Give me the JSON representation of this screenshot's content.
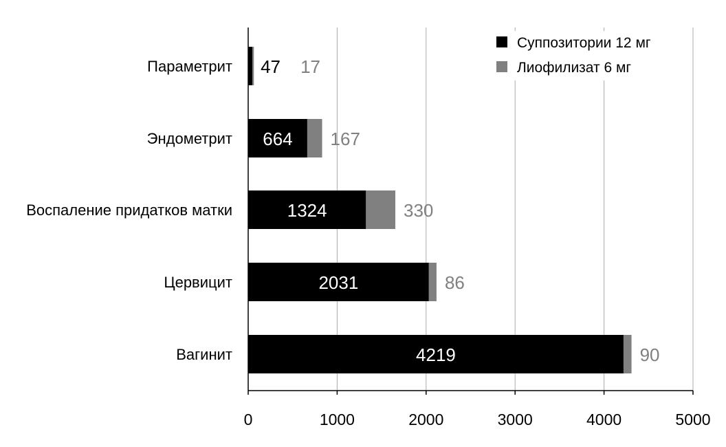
{
  "chart_data": {
    "type": "bar",
    "orientation": "horizontal",
    "stacked": true,
    "title": "",
    "xlabel": "",
    "ylabel": "",
    "xlim": [
      0,
      5000
    ],
    "x_ticks": [
      0,
      1000,
      2000,
      3000,
      4000,
      5000
    ],
    "grid": "vertical",
    "legend_position": "top-right",
    "categories": [
      "Параметрит",
      "Эндометрит",
      "Воспаление придатков матки",
      "Цервицит",
      "Вагинит"
    ],
    "series": [
      {
        "name": "Суппозитории 12 мг",
        "color": "#000000",
        "values": [
          47,
          664,
          1324,
          2031,
          4219
        ]
      },
      {
        "name": "Лиофилизат 6 мг",
        "color": "#808080",
        "values": [
          17,
          167,
          330,
          86,
          90
        ]
      }
    ]
  }
}
